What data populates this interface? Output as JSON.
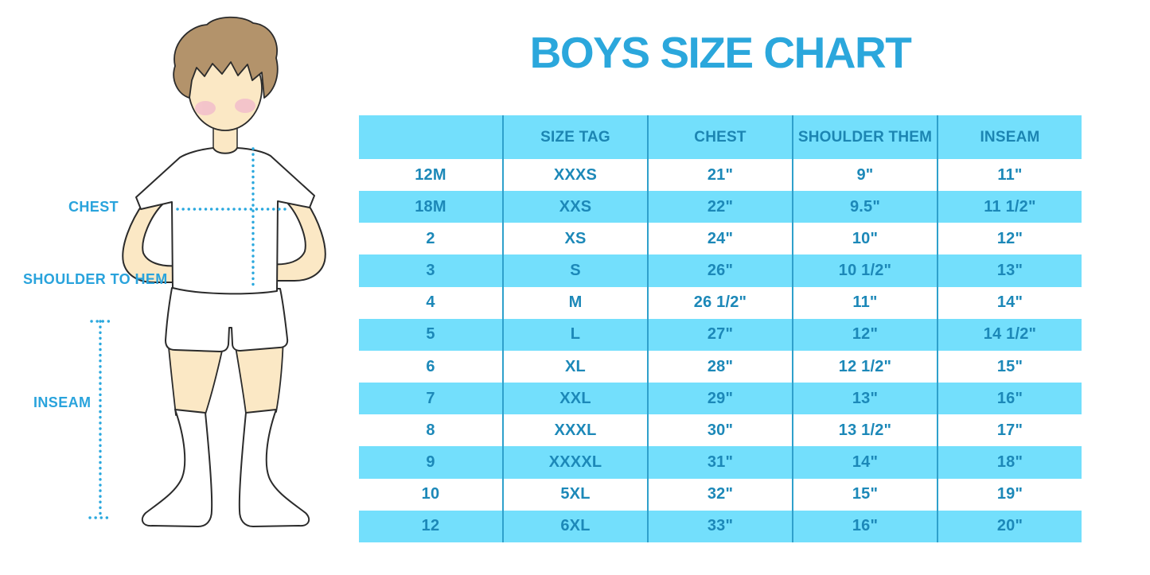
{
  "title": "BOYS SIZE CHART",
  "figure": {
    "labels": {
      "chest": "CHEST",
      "shoulder_to_hem": "SHOULDER TO HEM",
      "inseam": "INSEAM"
    }
  },
  "colors": {
    "title_blue": "#2BA7DC",
    "label_blue": "#29A3DC",
    "dotted_line_blue": "#2AA8DE",
    "table_row_blue": "#73DFFC",
    "table_text_blue": "#1C88B8",
    "table_divider_blue": "#2FA0CB",
    "skin": "#FBE8C5",
    "hair_brown": "#B3936B",
    "blush_pink": "#F2BECB"
  },
  "chart_data": {
    "type": "table",
    "columns": [
      "",
      "SIZE TAG",
      "CHEST",
      "SHOULDER THEM",
      "INSEAM"
    ],
    "rows": [
      [
        "12M",
        "XXXS",
        "21\"",
        "9\"",
        "11\""
      ],
      [
        "18M",
        "XXS",
        "22\"",
        "9.5\"",
        "11 1/2\""
      ],
      [
        "2",
        "XS",
        "24\"",
        "10\"",
        "12\""
      ],
      [
        "3",
        "S",
        "26\"",
        "10 1/2\"",
        "13\""
      ],
      [
        "4",
        "M",
        "26 1/2\"",
        "11\"",
        "14\""
      ],
      [
        "5",
        "L",
        "27\"",
        "12\"",
        "14 1/2\""
      ],
      [
        "6",
        "XL",
        "28\"",
        "12 1/2\"",
        "15\""
      ],
      [
        "7",
        "XXL",
        "29\"",
        "13\"",
        "16\""
      ],
      [
        "8",
        "XXXL",
        "30\"",
        "13 1/2\"",
        "17\""
      ],
      [
        "9",
        "XXXXL",
        "31\"",
        "14\"",
        "18\""
      ],
      [
        "10",
        "5XL",
        "32\"",
        "15\"",
        "19\""
      ],
      [
        "12",
        "6XL",
        "33\"",
        "16\"",
        "20\""
      ]
    ]
  }
}
